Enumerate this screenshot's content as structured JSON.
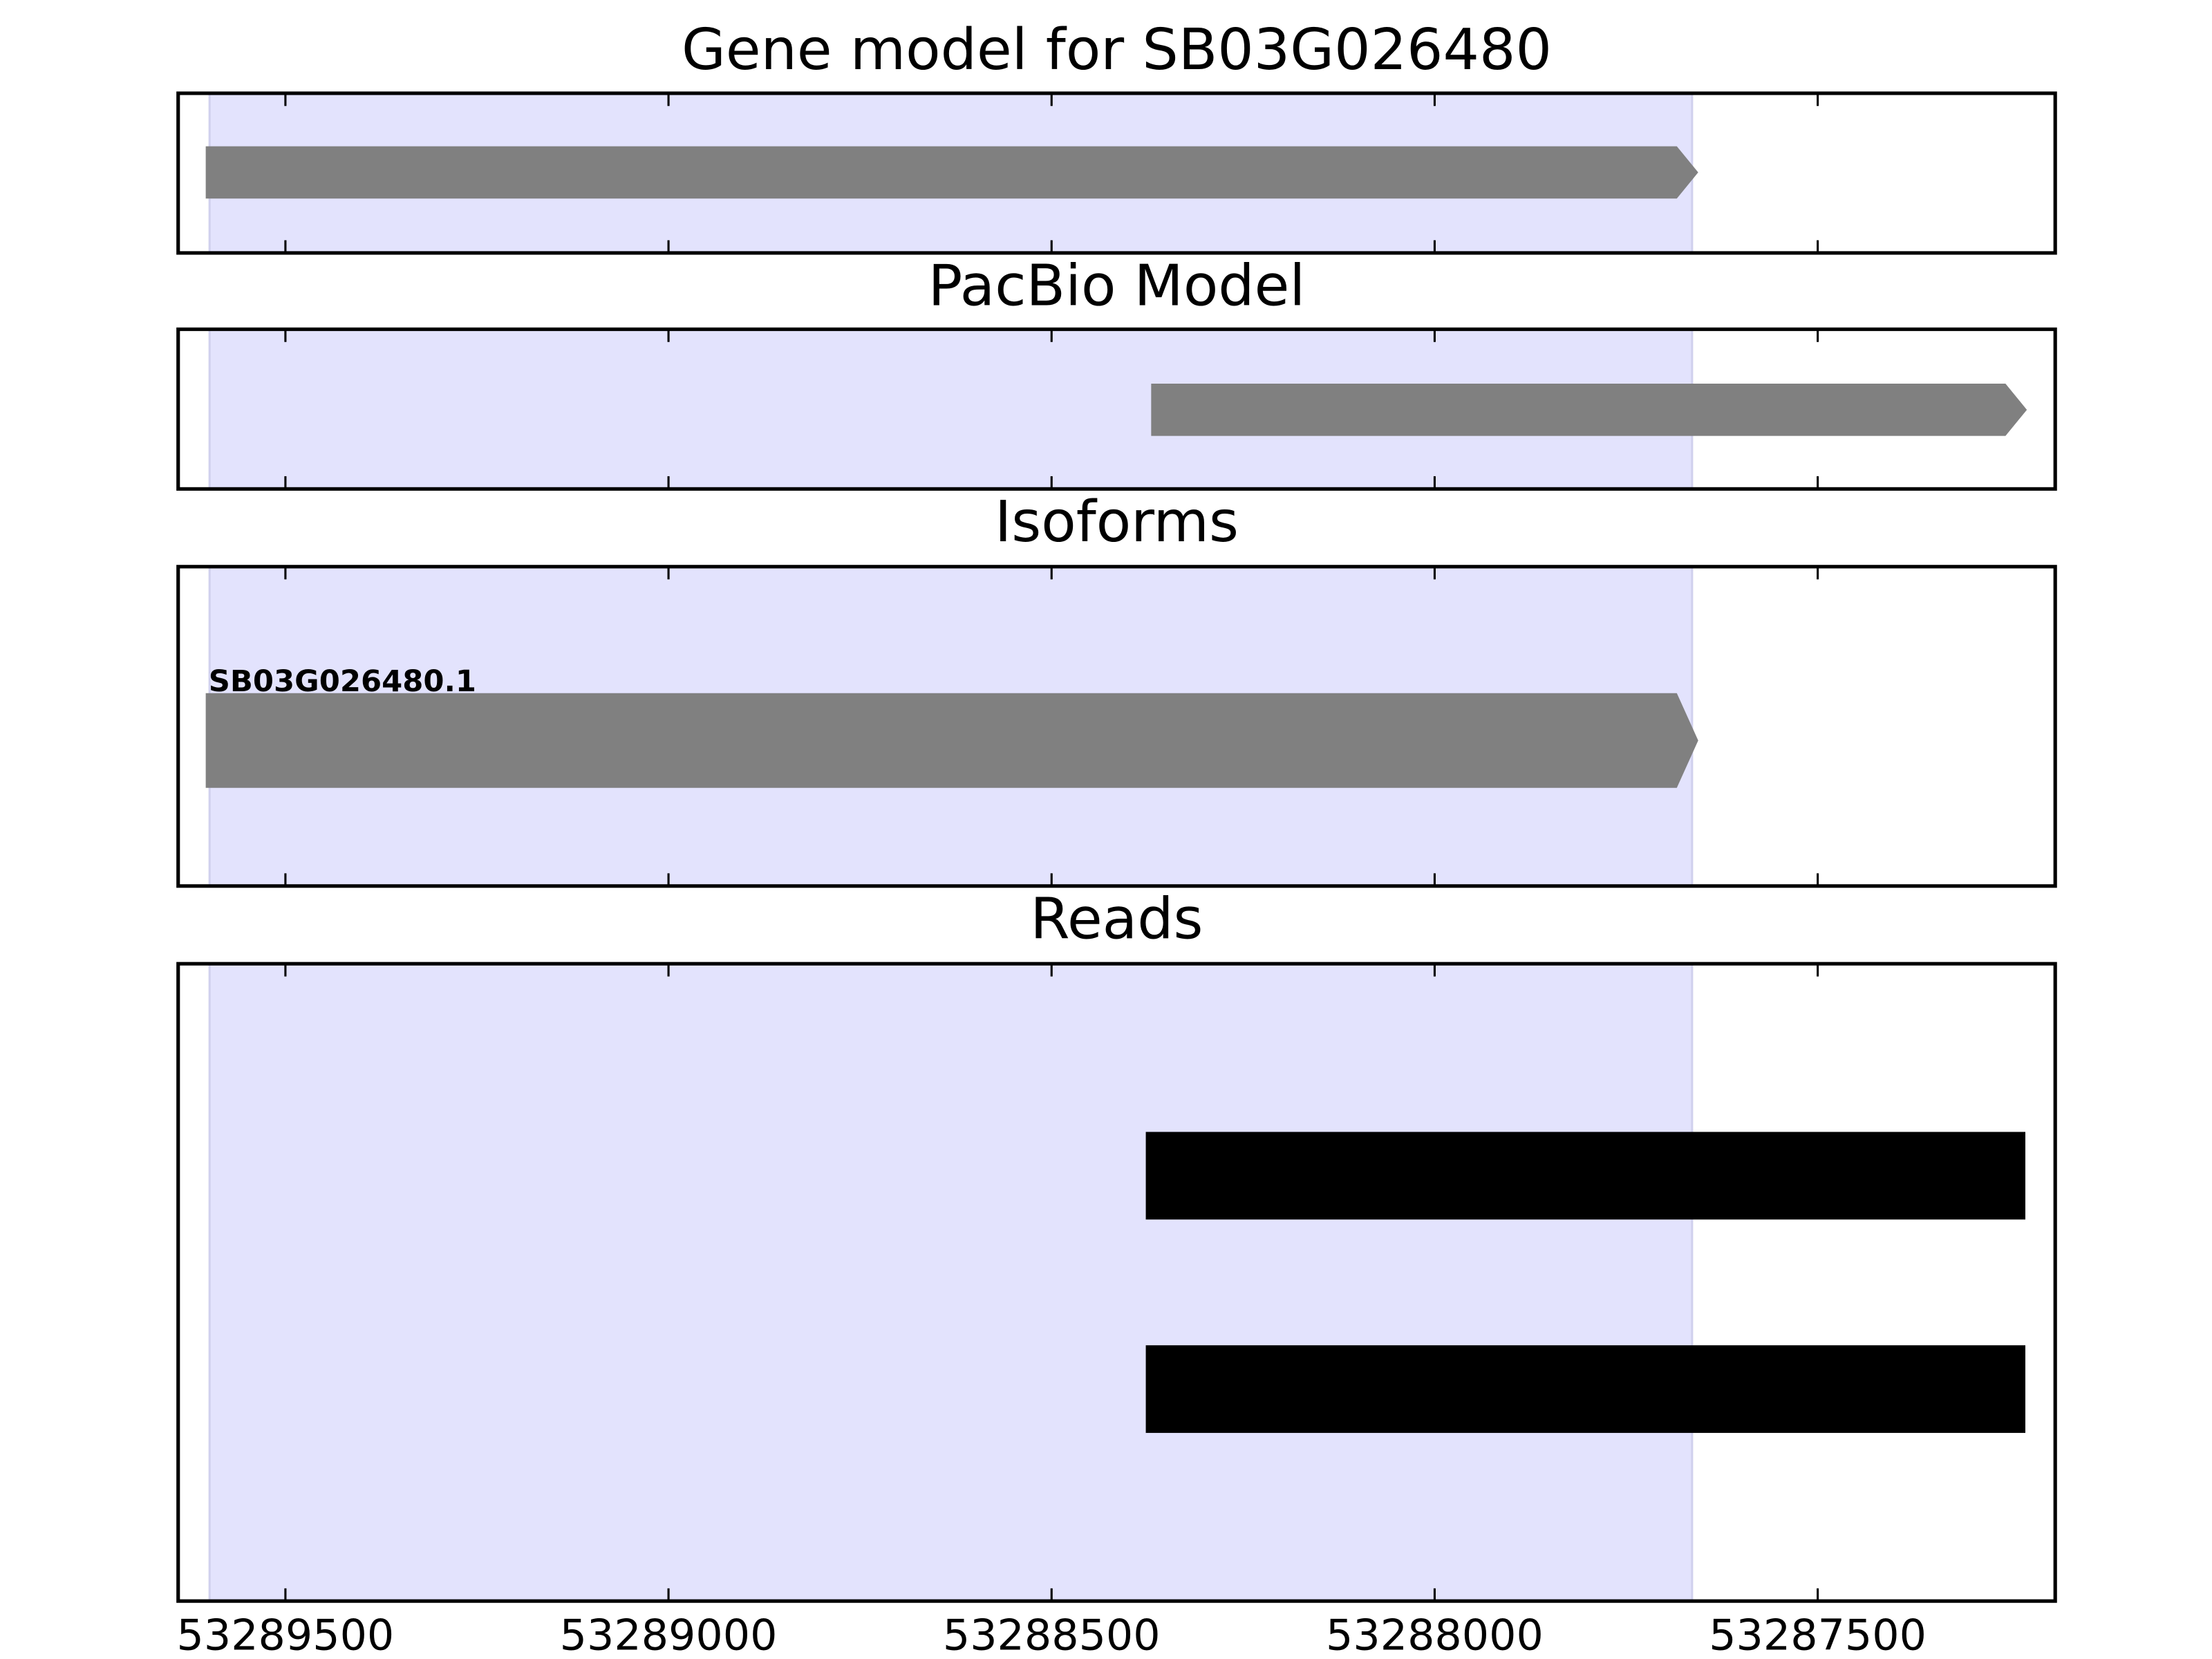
{
  "chart_data": [
    {
      "type": "track",
      "title": "Gene model for SB03G026480",
      "xlim": [
        53289640,
        53287190
      ],
      "highlight": [
        53289599,
        53287664
      ],
      "color": "#808080",
      "arrow": true,
      "features": [
        {
          "start": 53289604,
          "end": 53287656
        }
      ]
    },
    {
      "type": "track",
      "title": "PacBio Model",
      "xlim": [
        53289640,
        53287190
      ],
      "highlight": [
        53289599,
        53287664
      ],
      "color": "#808080",
      "arrow": true,
      "features": [
        {
          "start": 53288370,
          "end": 53287227
        }
      ]
    },
    {
      "type": "track",
      "title": "Isoforms",
      "xlim": [
        53289640,
        53287190
      ],
      "highlight": [
        53289599,
        53287664
      ],
      "color": "#808080",
      "arrow": true,
      "features": [
        {
          "start": 53289604,
          "end": 53287656,
          "label": "SB03G026480.1"
        }
      ]
    },
    {
      "type": "track",
      "title": "Reads",
      "xlim": [
        53289640,
        53287190
      ],
      "highlight": [
        53289599,
        53287664
      ],
      "color": "#000000",
      "arrow": false,
      "xticks": [
        53289500,
        53289000,
        53288500,
        53288000,
        53287500
      ],
      "features": [
        {
          "start": 53288377,
          "end": 53287229
        },
        {
          "start": 53288377,
          "end": 53287229
        }
      ]
    }
  ]
}
